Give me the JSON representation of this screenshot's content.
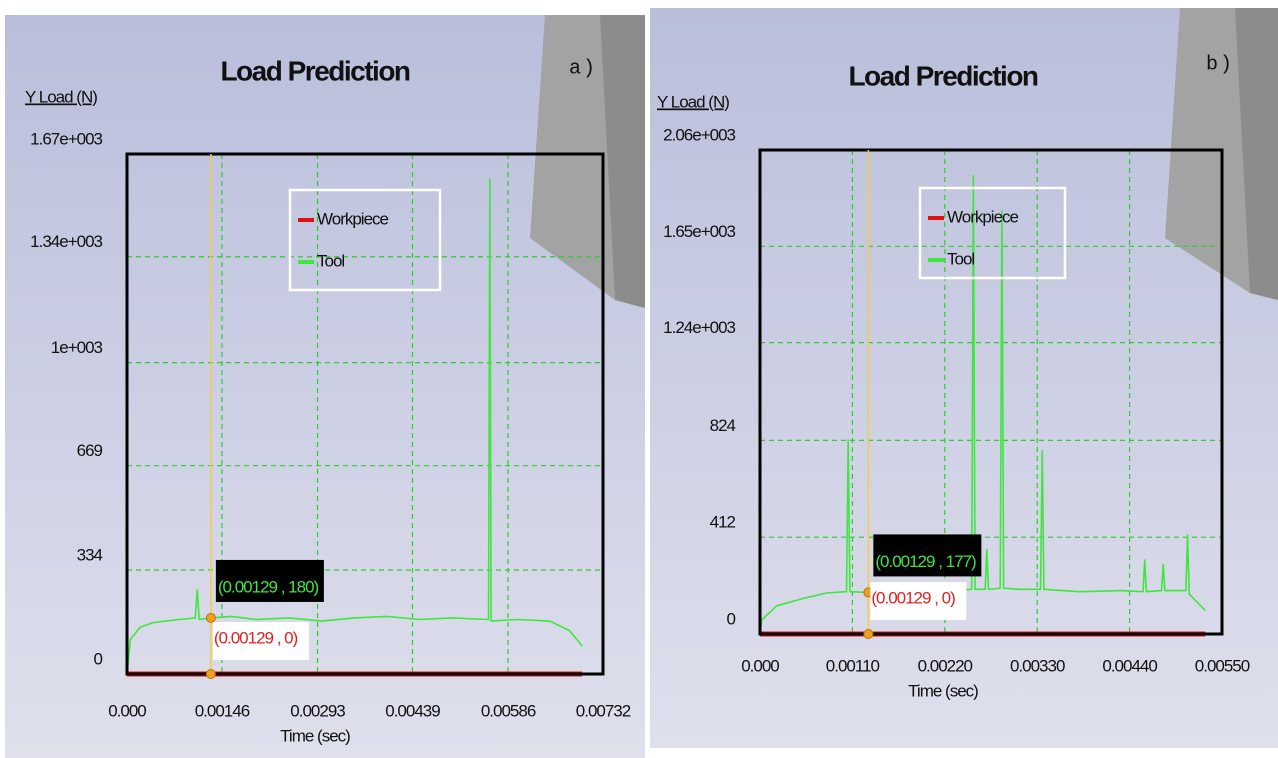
{
  "chart_data": [
    {
      "type": "line",
      "title": "Load Prediction",
      "panel_label": "a)",
      "ylabel": "Y Load (N)",
      "xlabel": "Time (sec)",
      "grid": true,
      "ylim": [
        0,
        1670
      ],
      "yticks": [
        0,
        334,
        669,
        {
          "value": 1000,
          "label": "1e+003"
        },
        {
          "value": 1340,
          "label": "1.34e+003"
        },
        {
          "value": 1670,
          "label": "1.67e+003"
        }
      ],
      "xlim": [
        0,
        0.00732
      ],
      "xticks": [
        {
          "value": 0,
          "label": "0.000"
        },
        0.00146,
        0.00293,
        0.00439,
        0.00586,
        0.00732
      ],
      "x": [
        0,
        5e-05,
        0.0002,
        0.0004,
        0.0006,
        0.0008,
        0.00105,
        0.00108,
        0.00111,
        0.00129,
        0.0016,
        0.002,
        0.0025,
        0.003,
        0.0035,
        0.004,
        0.0045,
        0.005,
        0.00556,
        0.00558,
        0.0056,
        0.006,
        0.0065,
        0.0068,
        0.007
      ],
      "series": [
        {
          "name": "Workpiece",
          "color": "#e01010",
          "values": [
            0,
            0,
            0,
            0,
            0,
            0,
            0,
            0,
            0,
            0,
            0,
            0,
            0,
            0,
            0,
            0,
            0,
            0,
            0,
            0,
            0,
            0,
            0,
            0,
            0
          ]
        },
        {
          "name": "Tool",
          "color": "#3ee63e",
          "values": [
            0,
            110,
            150,
            165,
            170,
            175,
            180,
            270,
            175,
            180,
            185,
            175,
            180,
            170,
            180,
            185,
            175,
            180,
            175,
            1590,
            170,
            175,
            170,
            140,
            90
          ]
        }
      ],
      "cursor": {
        "x": 0.00129,
        "points": [
          {
            "y": 180,
            "label": "(0.00129 , 180)"
          },
          {
            "y": 0,
            "label": "(0.00129 , 0)"
          }
        ]
      }
    },
    {
      "type": "line",
      "title": "Load Prediction",
      "panel_label": "b)",
      "ylabel": "Y Load (N)",
      "xlabel": "Time (sec)",
      "grid": true,
      "ylim": [
        0,
        2060
      ],
      "yticks": [
        0,
        412,
        824,
        {
          "value": 1240,
          "label": "1.24e+003"
        },
        {
          "value": 1650,
          "label": "1.65e+003"
        },
        {
          "value": 2060,
          "label": "2.06e+003"
        }
      ],
      "xlim": [
        0,
        0.0055
      ],
      "xticks": [
        {
          "value": 0,
          "label": "0.000"
        },
        {
          "value": 0.0011,
          "label": "0.00110"
        },
        {
          "value": 0.0022,
          "label": "0.00220"
        },
        {
          "value": 0.0033,
          "label": "0.00330"
        },
        {
          "value": 0.0044,
          "label": "0.00440"
        },
        {
          "value": 0.0055,
          "label": "0.00550"
        }
      ],
      "x": [
        0,
        2e-05,
        0.0002,
        0.0005,
        0.0008,
        0.00103,
        0.00105,
        0.00107,
        0.00129,
        0.0018,
        0.0023,
        0.00252,
        0.00254,
        0.00256,
        0.00268,
        0.0027,
        0.00272,
        0.00286,
        0.00288,
        0.0029,
        0.0031,
        0.00334,
        0.00336,
        0.00338,
        0.0038,
        0.0043,
        0.00456,
        0.00458,
        0.0046,
        0.00478,
        0.0048,
        0.00482,
        0.00507,
        0.00509,
        0.00511,
        0.0053
      ],
      "series": [
        {
          "name": "Workpiece",
          "color": "#e01010",
          "values": [
            0,
            0,
            0,
            0,
            0,
            0,
            0,
            0,
            0,
            0,
            0,
            0,
            0,
            0,
            0,
            0,
            0,
            0,
            0,
            0,
            0,
            0,
            0,
            0,
            0,
            0,
            0,
            0,
            0,
            0,
            0,
            0,
            0,
            0,
            0,
            0
          ]
        },
        {
          "name": "Tool",
          "color": "#3ee63e",
          "values": [
            0,
            60,
            120,
            150,
            175,
            180,
            826,
            180,
            177,
            180,
            185,
            190,
            1950,
            190,
            190,
            360,
            190,
            195,
            1800,
            195,
            190,
            190,
            780,
            190,
            180,
            185,
            180,
            315,
            180,
            185,
            295,
            185,
            185,
            420,
            170,
            100
          ]
        }
      ],
      "cursor": {
        "x": 0.00129,
        "points": [
          {
            "y": 177,
            "label": "(0.00129 , 177)"
          },
          {
            "y": 0,
            "label": "(0.00129 , 0)"
          }
        ]
      }
    }
  ]
}
